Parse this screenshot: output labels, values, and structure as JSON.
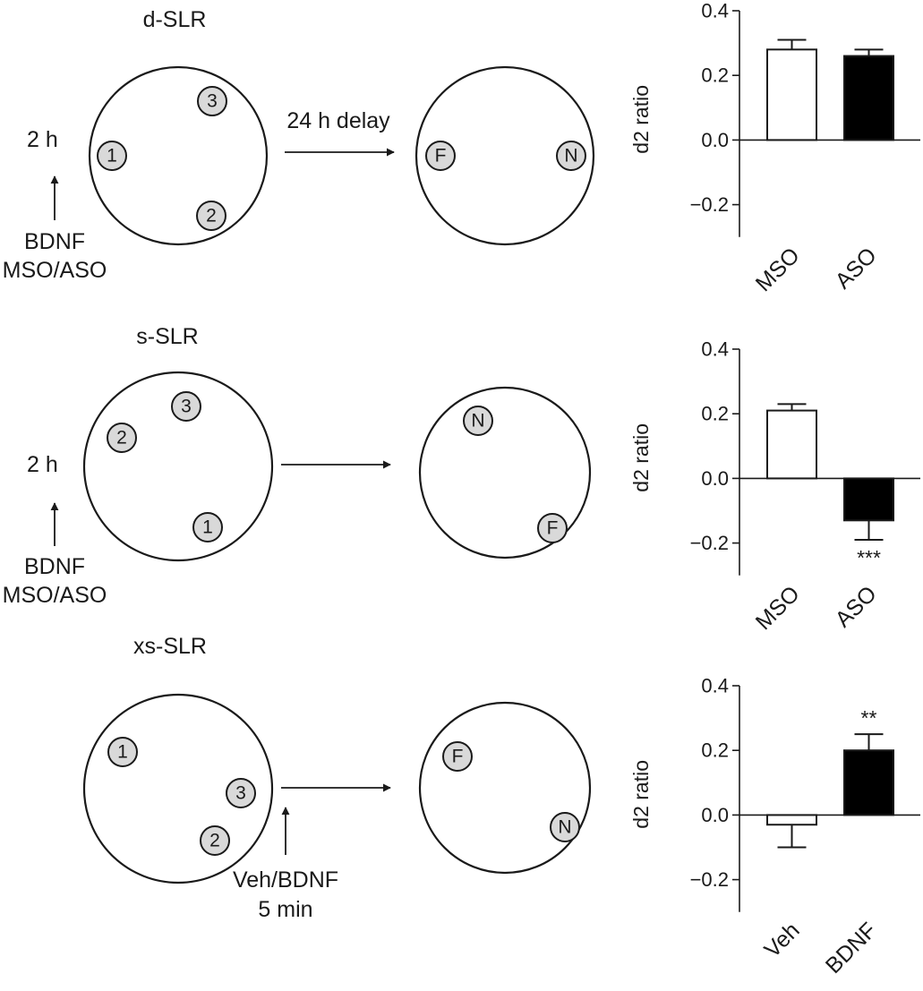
{
  "rows": [
    {
      "title": "d-SLR",
      "time_label": "2 h",
      "treatment_lines": [
        "BDNF",
        "MSO/ASO"
      ],
      "delay_label": "24 h delay",
      "sample_objects": [
        "1",
        "2",
        "3"
      ],
      "test_objects": [
        "F",
        "N"
      ]
    },
    {
      "title": "s-SLR",
      "time_label": "2 h",
      "treatment_lines": [
        "BDNF",
        "MSO/ASO"
      ],
      "delay_label": "",
      "sample_objects": [
        "1",
        "2",
        "3"
      ],
      "test_objects": [
        "N",
        "F"
      ]
    },
    {
      "title": "xs-SLR",
      "time_label": "",
      "treatment_lines": [
        "Veh/BDNF",
        "5 min"
      ],
      "delay_label": "",
      "sample_objects": [
        "1",
        "2",
        "3"
      ],
      "test_objects": [
        "F",
        "N"
      ]
    }
  ],
  "chart_data": [
    {
      "type": "bar",
      "categories": [
        "MSO",
        "ASO"
      ],
      "values": [
        0.28,
        0.26
      ],
      "errors": [
        0.03,
        0.02
      ],
      "bar_fills": [
        "#ffffff",
        "#000000"
      ],
      "significance": [
        "",
        ""
      ],
      "ylabel": "d2 ratio",
      "ylim": [
        -0.3,
        0.4
      ],
      "yticks": [
        0.4,
        0.2,
        0.0,
        -0.2
      ],
      "ytick_labels": [
        "0.4",
        "0.2",
        "0.0",
        "−0.2"
      ]
    },
    {
      "type": "bar",
      "categories": [
        "MSO",
        "ASO"
      ],
      "values": [
        0.21,
        -0.13
      ],
      "errors": [
        0.02,
        0.06
      ],
      "bar_fills": [
        "#ffffff",
        "#000000"
      ],
      "significance": [
        "",
        "***"
      ],
      "ylabel": "d2 ratio",
      "ylim": [
        -0.3,
        0.4
      ],
      "yticks": [
        0.4,
        0.2,
        0.0,
        -0.2
      ],
      "ytick_labels": [
        "0.4",
        "0.2",
        "0.0",
        "−0.2"
      ]
    },
    {
      "type": "bar",
      "categories": [
        "Veh",
        "BDNF"
      ],
      "values": [
        -0.03,
        0.2
      ],
      "errors": [
        0.07,
        0.05
      ],
      "bar_fills": [
        "#ffffff",
        "#000000"
      ],
      "significance": [
        "",
        "**"
      ],
      "ylabel": "d2 ratio",
      "ylim": [
        -0.3,
        0.4
      ],
      "yticks": [
        0.4,
        0.2,
        0.0,
        -0.2
      ],
      "ytick_labels": [
        "0.4",
        "0.2",
        "0.0",
        "−0.2"
      ]
    }
  ]
}
